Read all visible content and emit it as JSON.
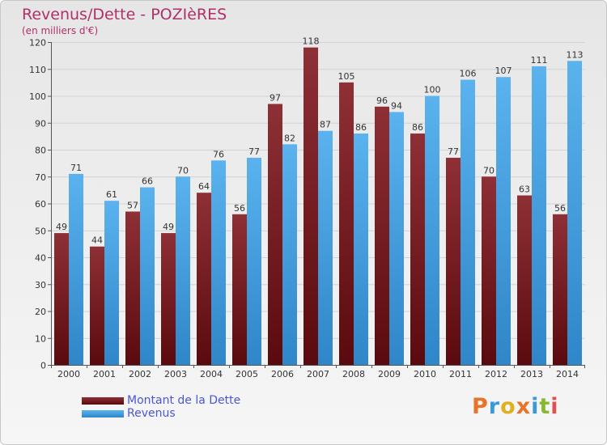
{
  "title": "Revenus/Dette - POZIèRES",
  "subtitle": "(en milliers d'€)",
  "logo": {
    "text": "Proxiti",
    "letter_colors": [
      "#e8742a",
      "#3a9ad9",
      "#e0b020",
      "#e8742a",
      "#3a9ad9",
      "#88b830",
      "#e05050"
    ]
  },
  "chart_data": {
    "type": "bar",
    "title": "Revenus/Dette - POZIèRES",
    "ylabel": "(en milliers d'€)",
    "xlabel": "",
    "ylim": [
      0,
      120
    ],
    "yticks": [
      0,
      10,
      20,
      30,
      40,
      50,
      60,
      70,
      80,
      90,
      100,
      110,
      120
    ],
    "grid": true,
    "legend_position": "bottom-left",
    "categories": [
      "2000",
      "2001",
      "2002",
      "2003",
      "2004",
      "2005",
      "2006",
      "2007",
      "2008",
      "2009",
      "2010",
      "2011",
      "2012",
      "2013",
      "2014"
    ],
    "series": [
      {
        "name": "Montant de la Dette",
        "color": "#7a1e22",
        "values": [
          49,
          44,
          57,
          49,
          64,
          56,
          97,
          118,
          105,
          96,
          86,
          77,
          70,
          63,
          56
        ]
      },
      {
        "name": "Revenus",
        "color": "#4aa3e3",
        "values": [
          71,
          61,
          66,
          70,
          76,
          77,
          82,
          87,
          86,
          94,
          100,
          106,
          107,
          111,
          113
        ]
      }
    ]
  }
}
